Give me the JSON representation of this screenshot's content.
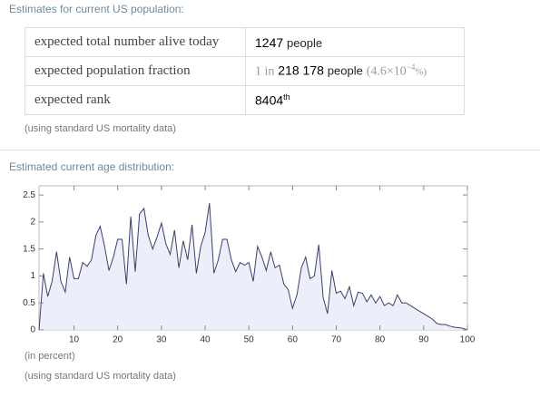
{
  "header": "Estimates for current US population:",
  "table": {
    "rows": [
      {
        "label": "expected total number alive today",
        "value": [
          "1247",
          "people"
        ]
      },
      {
        "label": "expected population fraction",
        "value": [
          "1 in",
          "218 178",
          "people",
          "(4.6×10",
          "−4",
          "%)"
        ]
      },
      {
        "label": "expected rank",
        "value": [
          "8404",
          "th"
        ]
      }
    ]
  },
  "note": "(using standard US mortality data)",
  "section2": "Estimated current age distribution:",
  "chart_data": {
    "type": "area",
    "color": "#3b3f6b",
    "fill": "#eceefa",
    "x": [
      2,
      3,
      4,
      5,
      6,
      7,
      8,
      9,
      10,
      11,
      12,
      13,
      14,
      15,
      16,
      17,
      18,
      19,
      20,
      21,
      22,
      23,
      24,
      25,
      26,
      27,
      28,
      29,
      30,
      31,
      32,
      33,
      34,
      35,
      36,
      37,
      38,
      39,
      40,
      41,
      42,
      43,
      44,
      45,
      46,
      47,
      48,
      49,
      50,
      51,
      52,
      53,
      54,
      55,
      56,
      57,
      58,
      59,
      60,
      61,
      62,
      63,
      64,
      65,
      66,
      67,
      68,
      69,
      70,
      71,
      72,
      73,
      74,
      75,
      76,
      77,
      78,
      79,
      80,
      81,
      82,
      83,
      84,
      85,
      86,
      87,
      88,
      89,
      90,
      91,
      92,
      93,
      94,
      95,
      96,
      97,
      98,
      99,
      100
    ],
    "values": [
      0,
      1.05,
      0.62,
      0.9,
      1.45,
      0.9,
      0.7,
      1.35,
      0.95,
      0.95,
      1.25,
      1.18,
      1.3,
      1.75,
      1.92,
      1.55,
      1.1,
      1.35,
      1.68,
      1.68,
      0.85,
      2.1,
      1.08,
      2.15,
      2.25,
      1.75,
      1.5,
      1.72,
      1.98,
      1.6,
      1.4,
      1.85,
      1.15,
      1.65,
      1.3,
      1.95,
      1.05,
      1.55,
      1.8,
      2.35,
      1.05,
      1.3,
      1.68,
      1.68,
      1.3,
      1.08,
      1.25,
      1.2,
      1.25,
      0.9,
      1.55,
      1.35,
      1.1,
      1.45,
      1.15,
      1.2,
      0.85,
      0.75,
      0.4,
      0.65,
      1.15,
      1.35,
      0.95,
      1.0,
      1.58,
      0.6,
      0.3,
      1.1,
      0.68,
      0.72,
      0.58,
      0.8,
      0.45,
      0.7,
      0.68,
      0.52,
      0.65,
      0.5,
      0.62,
      0.45,
      0.5,
      0.45,
      0.65,
      0.5,
      0.5,
      0.45,
      0.4,
      0.35,
      0.3,
      0.25,
      0.2,
      0.12,
      0.1,
      0.1,
      0.07,
      0.05,
      0.04,
      0.03,
      0
    ],
    "xlim": [
      2,
      100
    ],
    "ylim": [
      0,
      2.67
    ],
    "xticks": [
      10,
      20,
      30,
      40,
      50,
      60,
      70,
      80,
      90,
      100
    ],
    "yticks": [
      0,
      0.5,
      1,
      1.5,
      2,
      2.5
    ],
    "unit_note": "(in percent)",
    "note": "(using standard US mortality data)"
  }
}
